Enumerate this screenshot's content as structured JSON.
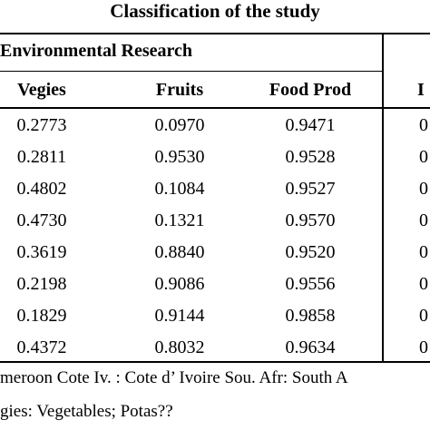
{
  "table": {
    "title": "Classification of the study",
    "group_header": "Environmental Research",
    "columns": [
      "Vegies",
      "Fruits",
      "Food Prod",
      "I"
    ],
    "rows": [
      [
        "0.2773",
        "0.0970",
        "0.9471",
        "0"
      ],
      [
        "0.2811",
        "0.9530",
        "0.9528",
        "0"
      ],
      [
        "0.4802",
        "0.1084",
        "0.9527",
        "0"
      ],
      [
        "0.4730",
        "0.1321",
        "0.9570",
        "0"
      ],
      [
        "0.3619",
        "0.8840",
        "0.9520",
        "0"
      ],
      [
        "0.2198",
        "0.9086",
        "0.9556",
        "0"
      ],
      [
        "0.1829",
        "0.9144",
        "0.9858",
        "0"
      ],
      [
        "0.4372",
        "0.8032",
        "0.9634",
        "0"
      ]
    ],
    "footnotes": [
      "meroon Cote Iv. : Cote d’ Ivoire Sou. Afr: South A",
      "gies: Vegetables; Potas??"
    ]
  }
}
